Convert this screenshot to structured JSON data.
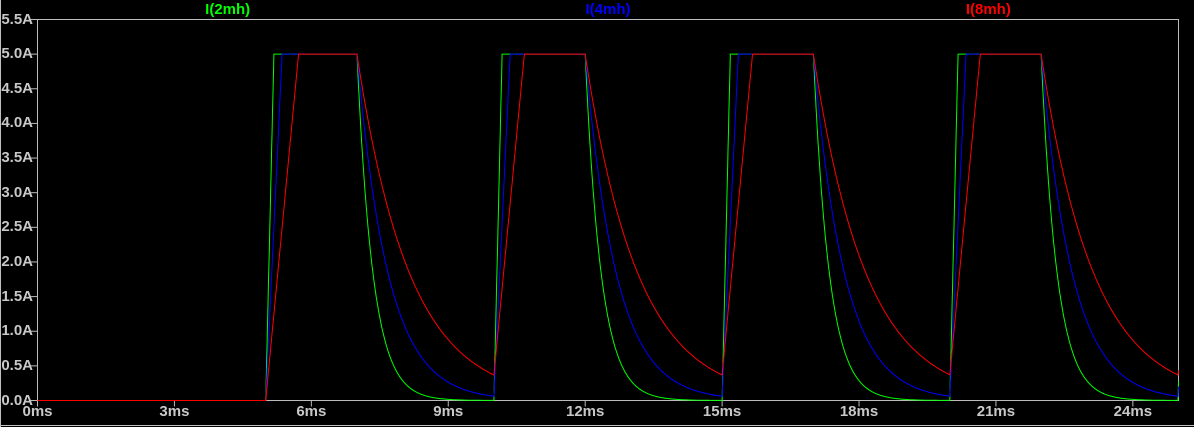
{
  "window": {
    "background": "#000000",
    "frame_color": "#c0c0c0"
  },
  "chart_data": {
    "type": "line",
    "title": "",
    "legend_position": "top",
    "grid": false,
    "background": "#000000",
    "axis_color": "#bcbcbc",
    "text_color": "#c8c8c8",
    "x_axis": {
      "unit": "ms",
      "min": 0,
      "max": 25,
      "tick_interval_ms": 3,
      "ticks": [
        {
          "t": 0,
          "label": "0ms"
        },
        {
          "t": 3,
          "label": "3ms"
        },
        {
          "t": 6,
          "label": "6ms"
        },
        {
          "t": 9,
          "label": "9ms"
        },
        {
          "t": 12,
          "label": "12ms"
        },
        {
          "t": 15,
          "label": "15ms"
        },
        {
          "t": 18,
          "label": "18ms"
        },
        {
          "t": 21,
          "label": "21ms"
        },
        {
          "t": 24,
          "label": "24ms"
        }
      ]
    },
    "y_axis": {
      "unit": "A",
      "min": 0,
      "max": 5.5,
      "tick_interval_A": 0.5,
      "ticks": [
        {
          "v": 0.0,
          "label": "0.0A"
        },
        {
          "v": 0.5,
          "label": "0.5A"
        },
        {
          "v": 1.0,
          "label": "1.0A"
        },
        {
          "v": 1.5,
          "label": "1.5A"
        },
        {
          "v": 2.0,
          "label": "2.0A"
        },
        {
          "v": 2.5,
          "label": "2.5A"
        },
        {
          "v": 3.0,
          "label": "3.0A"
        },
        {
          "v": 3.5,
          "label": "3.5A"
        },
        {
          "v": 4.0,
          "label": "4.0A"
        },
        {
          "v": 4.5,
          "label": "4.5A"
        },
        {
          "v": 5.0,
          "label": "5.0A"
        },
        {
          "v": 5.5,
          "label": "5.5A"
        }
      ]
    },
    "series": [
      {
        "name": "I(2mh)",
        "color": "#00ff00",
        "rise_ms": 0.18,
        "decay_tau_ms": 0.35
      },
      {
        "name": "I(4mh)",
        "color": "#0000ff",
        "rise_ms": 0.36,
        "decay_tau_ms": 0.68
      },
      {
        "name": "I(8mh)",
        "color": "#ff0000",
        "rise_ms": 0.72,
        "decay_tau_ms": 1.15
      }
    ],
    "pulse": {
      "amplitude_A": 5,
      "delay_ms": 5,
      "on_ms": 2,
      "period_ms": 5,
      "sim_end_ms": 25
    }
  }
}
